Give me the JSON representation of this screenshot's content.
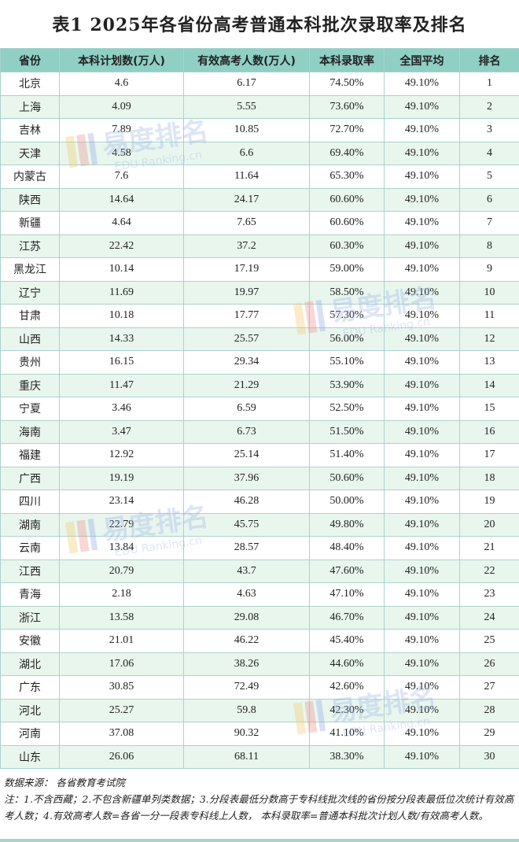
{
  "title": "表1  2025年各省份高考普通本科批次录取率及排名",
  "headers": [
    "省份",
    "本科计划数(万人)",
    "有效高考人数(万人)",
    "本科录取率",
    "全国平均",
    "排名"
  ],
  "rows": [
    [
      "北京",
      "4.6",
      "6.17",
      "74.50%",
      "49.10%",
      "1"
    ],
    [
      "上海",
      "4.09",
      "5.55",
      "73.60%",
      "49.10%",
      "2"
    ],
    [
      "吉林",
      "7.89",
      "10.85",
      "72.70%",
      "49.10%",
      "3"
    ],
    [
      "天津",
      "4.58",
      "6.6",
      "69.40%",
      "49.10%",
      "4"
    ],
    [
      "内蒙古",
      "7.6",
      "11.64",
      "65.30%",
      "49.10%",
      "5"
    ],
    [
      "陕西",
      "14.64",
      "24.17",
      "60.60%",
      "49.10%",
      "6"
    ],
    [
      "新疆",
      "4.64",
      "7.65",
      "60.60%",
      "49.10%",
      "7"
    ],
    [
      "江苏",
      "22.42",
      "37.2",
      "60.30%",
      "49.10%",
      "8"
    ],
    [
      "黑龙江",
      "10.14",
      "17.19",
      "59.00%",
      "49.10%",
      "9"
    ],
    [
      "辽宁",
      "11.69",
      "19.97",
      "58.50%",
      "49.10%",
      "10"
    ],
    [
      "甘肃",
      "10.18",
      "17.77",
      "57.30%",
      "49.10%",
      "11"
    ],
    [
      "山西",
      "14.33",
      "25.57",
      "56.00%",
      "49.10%",
      "12"
    ],
    [
      "贵州",
      "16.15",
      "29.34",
      "55.10%",
      "49.10%",
      "13"
    ],
    [
      "重庆",
      "11.47",
      "21.29",
      "53.90%",
      "49.10%",
      "14"
    ],
    [
      "宁夏",
      "3.46",
      "6.59",
      "52.50%",
      "49.10%",
      "15"
    ],
    [
      "海南",
      "3.47",
      "6.73",
      "51.50%",
      "49.10%",
      "16"
    ],
    [
      "福建",
      "12.92",
      "25.14",
      "51.40%",
      "49.10%",
      "17"
    ],
    [
      "广西",
      "19.19",
      "37.96",
      "50.60%",
      "49.10%",
      "18"
    ],
    [
      "四川",
      "23.14",
      "46.28",
      "50.00%",
      "49.10%",
      "19"
    ],
    [
      "湖南",
      "22.79",
      "45.75",
      "49.80%",
      "49.10%",
      "20"
    ],
    [
      "云南",
      "13.84",
      "28.57",
      "48.40%",
      "49.10%",
      "21"
    ],
    [
      "江西",
      "20.79",
      "43.7",
      "47.60%",
      "49.10%",
      "22"
    ],
    [
      "青海",
      "2.18",
      "4.63",
      "47.10%",
      "49.10%",
      "23"
    ],
    [
      "浙江",
      "13.58",
      "29.08",
      "46.70%",
      "49.10%",
      "24"
    ],
    [
      "安徽",
      "21.01",
      "46.22",
      "45.40%",
      "49.10%",
      "25"
    ],
    [
      "湖北",
      "17.06",
      "38.26",
      "44.60%",
      "49.10%",
      "26"
    ],
    [
      "广东",
      "30.85",
      "72.49",
      "42.60%",
      "49.10%",
      "27"
    ],
    [
      "河北",
      "25.27",
      "59.8",
      "42.30%",
      "49.10%",
      "28"
    ],
    [
      "河南",
      "37.08",
      "90.32",
      "41.10%",
      "49.10%",
      "29"
    ],
    [
      "山东",
      "26.06",
      "68.11",
      "38.30%",
      "49.10%",
      "30"
    ]
  ],
  "notes": {
    "source": "数据来源： 各省教育考试院",
    "note": "注：1.不含西藏；2.不包含新疆单列类数据；3.分段表最低分数高于专科线批次线的省份按分段表最低位次统计有效高考人数；4.有效高考人数=各省一分一段表专科线上人数， 本科录取率=普通本科批次计划人数/有效高考人数。"
  },
  "watermark": {
    "brand": "易度排名",
    "site": "EDU Ranking.cn"
  },
  "colors": {
    "header_bg": "#8fcfc4",
    "alt_row_bg": "#e9f6ee",
    "border": "#a9d3cc"
  }
}
